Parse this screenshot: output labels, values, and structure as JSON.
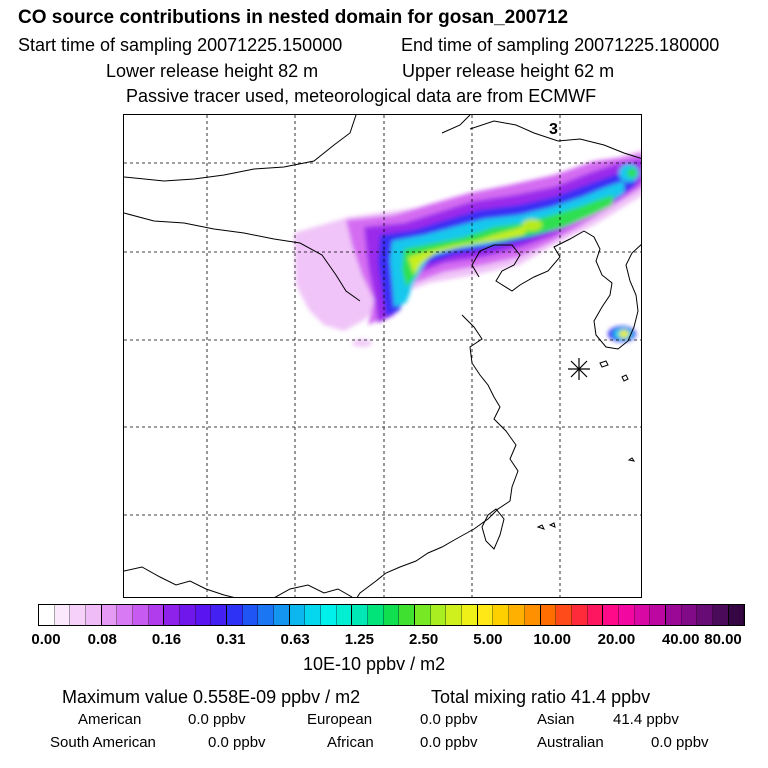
{
  "header": {
    "title": "CO  source contributions in nested domain for gosan_200712",
    "start_label": "Start time of sampling 20071225.150000",
    "end_label": "End time of sampling 20071225.180000",
    "lower_label": "Lower release height   82 m",
    "upper_label": "Upper release height   62 m",
    "note": "Passive tracer used, meteorological data are from ECMWF"
  },
  "map": {
    "panel_number": "3",
    "station_marker": "asterisk-marker"
  },
  "colorbar": {
    "tick_labels": [
      "0.00",
      "0.08",
      "0.16",
      "0.31",
      "0.63",
      "1.25",
      "2.50",
      "5.00",
      "10.00",
      "20.00",
      "40.00",
      "80.00"
    ],
    "colors": [
      "#ffffff",
      "#fbe8fd",
      "#f6d2fb",
      "#f0bcf8",
      "#e59af5",
      "#d77af3",
      "#c75af0",
      "#b03ced",
      "#8f22ea",
      "#7018ec",
      "#5a14f0",
      "#4420f3",
      "#2e32f6",
      "#1f55f4",
      "#1a76f2",
      "#1496f0",
      "#0cb6ee",
      "#05d8ee",
      "#00f0ec",
      "#00eed2",
      "#00e8b6",
      "#00e47a",
      "#10e050",
      "#40e030",
      "#76e824",
      "#a8ee20",
      "#cff01c",
      "#eef018",
      "#ffe816",
      "#ffd000",
      "#ffb000",
      "#ff9100",
      "#ff6e00",
      "#ff4a1a",
      "#ff2a3a",
      "#ff1660",
      "#ff0a88",
      "#f208a0",
      "#d808a4",
      "#bc08a0",
      "#9c0896",
      "#800a88",
      "#660c74",
      "#4c0a5a",
      "#360644"
    ],
    "unit": "10E-10 ppbv / m2"
  },
  "footer": {
    "max_value": "Maximum value  0.558E-09 ppbv / m2",
    "total": "Total mixing ratio        41.4 ppbv",
    "regions": [
      {
        "name": "American",
        "value": "0.0 ppbv"
      },
      {
        "name": "European",
        "value": "0.0 ppbv"
      },
      {
        "name": "Asian",
        "value": "41.4 ppbv"
      },
      {
        "name": "South American",
        "value": "0.0 ppbv"
      },
      {
        "name": "African",
        "value": "0.0 ppbv"
      },
      {
        "name": "Australian",
        "value": "0.0 ppbv"
      }
    ]
  }
}
